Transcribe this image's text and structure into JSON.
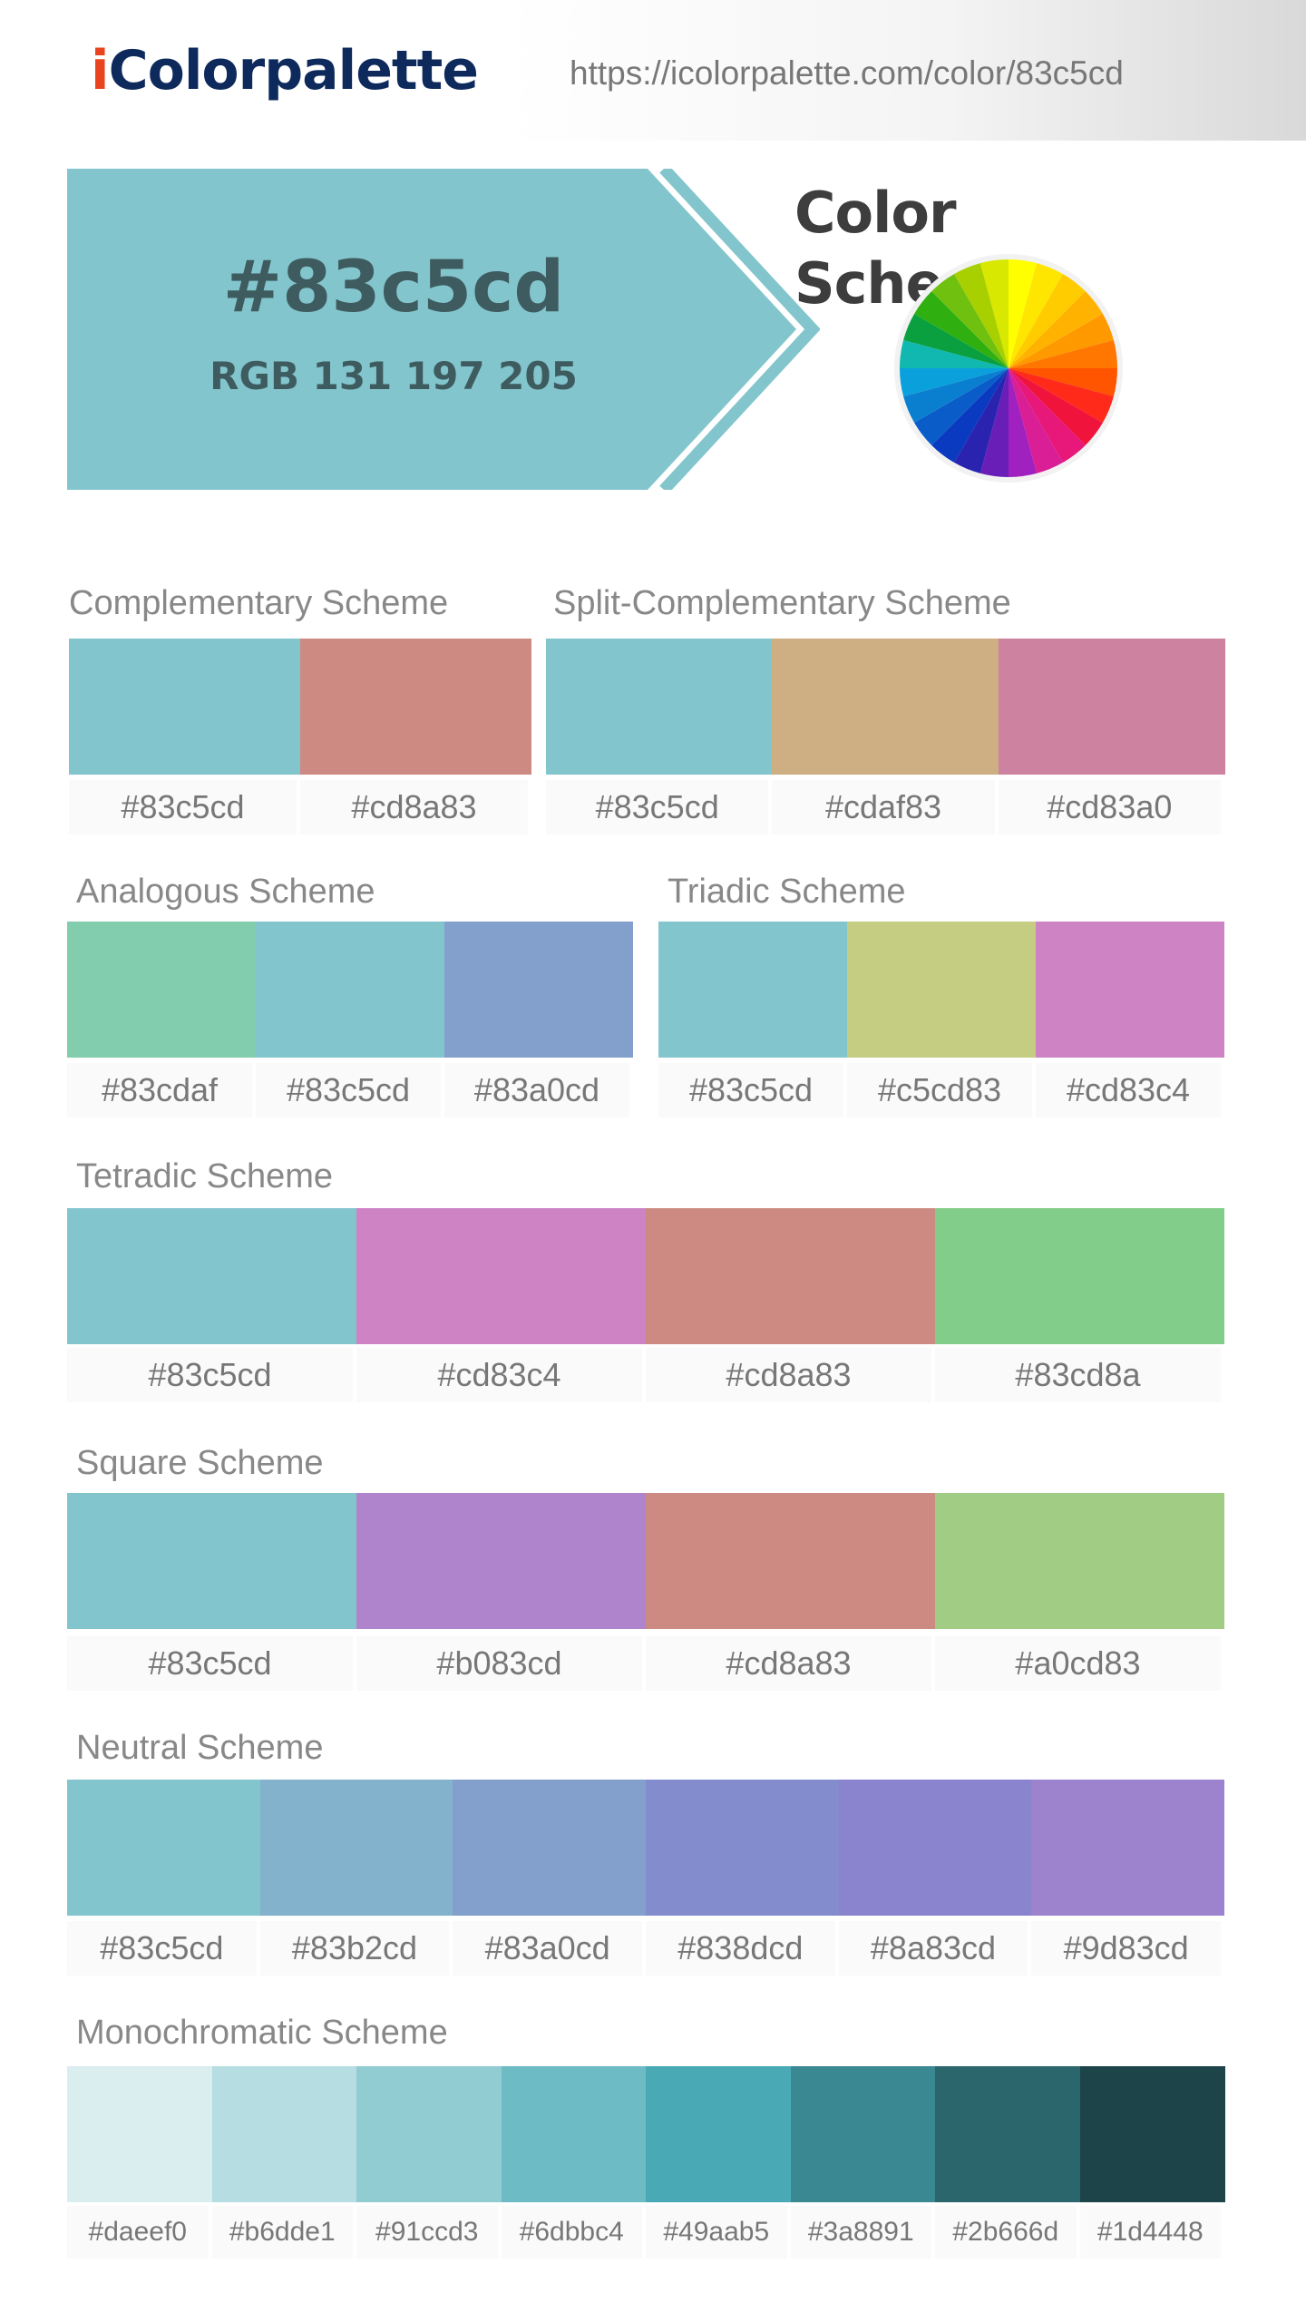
{
  "header": {
    "logo_first": "i",
    "logo_rest": "Colorpalette",
    "url": "https://icolorpalette.com/color/83c5cd"
  },
  "hero": {
    "hex": "#83c5cd",
    "rgb": "RGB 131 197 205",
    "color": "#83c5cd",
    "text_color": "#3e5c5f"
  },
  "schemes_title": "Color Schemes",
  "wheel_icon": "color-wheel-icon",
  "schemes": {
    "complementary": {
      "title": "Complementary Scheme",
      "colors": [
        "#83c5cd",
        "#cd8a83"
      ],
      "labels": [
        "#83c5cd",
        "#cd8a83"
      ]
    },
    "split": {
      "title": "Split-Complementary Scheme",
      "colors": [
        "#83c5cd",
        "#cdaf83",
        "#cd83a0"
      ],
      "labels": [
        "#83c5cd",
        "#cdaf83",
        "#cd83a0"
      ]
    },
    "analogous": {
      "title": "Analogous Scheme",
      "colors": [
        "#83cdaf",
        "#83c5cd",
        "#83a0cd"
      ],
      "labels": [
        "#83cdaf",
        "#83c5cd",
        "#83a0cd"
      ]
    },
    "triadic": {
      "title": "Triadic Scheme",
      "colors": [
        "#83c5cd",
        "#c5cd83",
        "#cd83c4"
      ],
      "labels": [
        "#83c5cd",
        "#c5cd83",
        "#cd83c4"
      ]
    },
    "tetradic": {
      "title": "Tetradic Scheme",
      "colors": [
        "#83c5cd",
        "#cd83c4",
        "#cd8a83",
        "#83cd8a"
      ],
      "labels": [
        "#83c5cd",
        "#cd83c4",
        "#cd8a83",
        "#83cd8a"
      ]
    },
    "square": {
      "title": "Square Scheme",
      "colors": [
        "#83c5cd",
        "#b083cd",
        "#cd8a83",
        "#a0cd83"
      ],
      "labels": [
        "#83c5cd",
        "#b083cd",
        "#cd8a83",
        "#a0cd83"
      ]
    },
    "neutral": {
      "title": "Neutral Scheme",
      "colors": [
        "#83c5cd",
        "#83b2cd",
        "#83a0cd",
        "#838dcd",
        "#8a83cd",
        "#9d83cd"
      ],
      "labels": [
        "#83c5cd",
        "#83b2cd",
        "#83a0cd",
        "#838dcd",
        "#8a83cd",
        "#9d83cd"
      ]
    },
    "monochromatic": {
      "title": "Monochromatic Scheme",
      "colors": [
        "#daeef0",
        "#b6dde1",
        "#91ccd3",
        "#6dbbc4",
        "#49aab5",
        "#3a8891",
        "#2b666d",
        "#1d4448"
      ],
      "labels": [
        "#daeef0",
        "#b6dde1",
        "#91ccd3",
        "#6dbbc4",
        "#49aab5",
        "#3a8891",
        "#2b666d",
        "#1d4448"
      ]
    }
  }
}
